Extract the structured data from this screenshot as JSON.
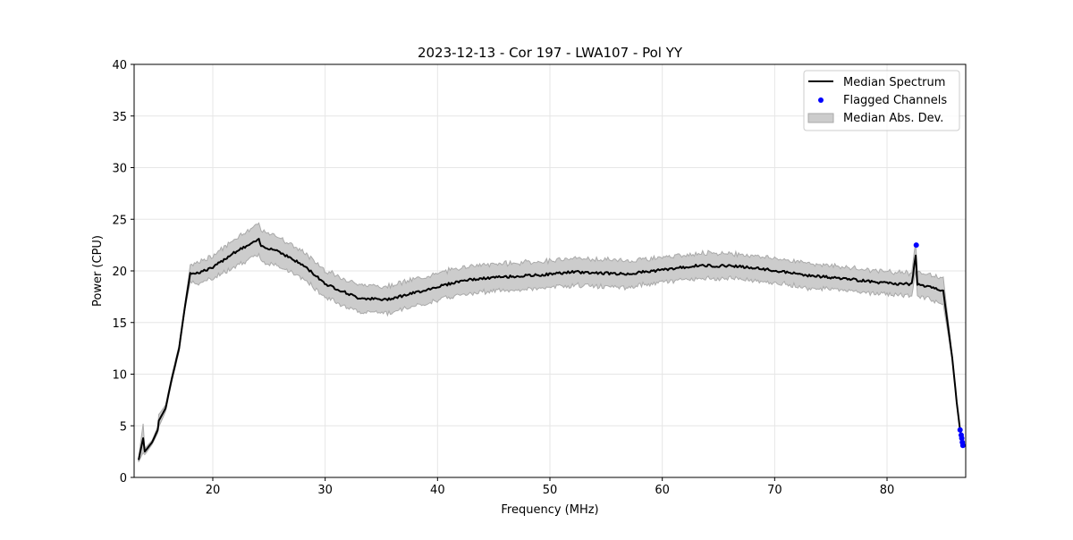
{
  "chart_data": {
    "type": "line",
    "title": "2023-12-13 - Cor 197 - LWA107 - Pol YY",
    "xlabel": "Frequency (MHz)",
    "ylabel": "Power (CPU)",
    "xlim": [
      13,
      87
    ],
    "ylim": [
      0,
      40
    ],
    "xticks": [
      20,
      30,
      40,
      50,
      60,
      70,
      80
    ],
    "yticks": [
      0,
      5,
      10,
      15,
      20,
      25,
      30,
      35,
      40
    ],
    "grid": true,
    "legend_position": "top-right",
    "legend": [
      "Median Spectrum",
      "Flagged Channels",
      "Median Abs. Dev."
    ],
    "colors": {
      "median": "#000000",
      "flagged": "#0000ff",
      "mad": "#cccccc",
      "mad_edge": "#aaaaaa"
    },
    "median_spectrum": {
      "freq": [
        13.4,
        13.8,
        13.95,
        14.6,
        15.1,
        15.2,
        15.8,
        16.3,
        17.0,
        17.5,
        18.0,
        18.6,
        20.0,
        21.75,
        24.1,
        24.3,
        25.7,
        28.1,
        30.1,
        32.9,
        35.3,
        37.7,
        40.1,
        42.4,
        45.6,
        49.2,
        52.0,
        56.8,
        60.0,
        63.1,
        66.3,
        69.5,
        72.7,
        77.5,
        80.0,
        82.2,
        82.55,
        82.7,
        85.0,
        85.8,
        86.2,
        86.5,
        86.8
      ],
      "power": [
        1.7,
        3.8,
        2.5,
        3.4,
        4.6,
        5.5,
        6.7,
        9.3,
        12.5,
        16.4,
        19.8,
        19.8,
        20.3,
        21.7,
        23.0,
        22.4,
        22.0,
        20.5,
        18.7,
        17.4,
        17.2,
        17.8,
        18.5,
        19.1,
        19.4,
        19.6,
        19.9,
        19.7,
        20.1,
        20.5,
        20.5,
        20.1,
        19.6,
        19.1,
        18.8,
        18.7,
        21.5,
        18.7,
        18.1,
        11.6,
        7.3,
        4.6,
        3.2
      ],
      "mad": [
        0.2,
        1.4,
        0.3,
        0.2,
        0.3,
        0.6,
        0.3,
        0.3,
        0.3,
        0.3,
        0.8,
        1.0,
        1.1,
        1.3,
        1.5,
        1.5,
        1.4,
        1.3,
        1.3,
        1.3,
        1.3,
        1.3,
        1.3,
        1.3,
        1.3,
        1.3,
        1.3,
        1.3,
        1.2,
        1.2,
        1.2,
        1.2,
        1.2,
        1.1,
        1.1,
        1.1,
        1.3,
        1.1,
        1.3,
        0.2,
        0.1,
        0.1,
        0.1
      ]
    },
    "flagged_channels": {
      "freq": [
        82.6,
        86.5,
        86.6,
        86.65,
        86.7,
        86.75
      ],
      "power": [
        22.5,
        4.6,
        4.1,
        3.8,
        3.4,
        3.1
      ]
    }
  }
}
